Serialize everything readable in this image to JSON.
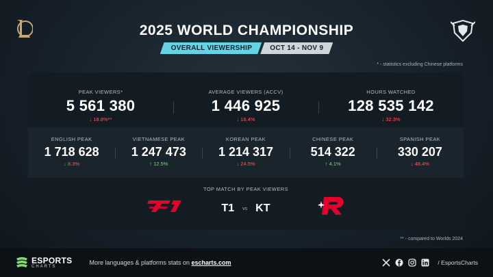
{
  "header": {
    "title": "2025 WORLD CHAMPIONSHIP",
    "tag": "OVERALL VIEWERSHIP",
    "dates": "OCT 14 - NOV 9",
    "note": "* - statistics excluding Chinese platforms"
  },
  "main_stats": [
    {
      "label": "PEAK VIEWERS*",
      "value": "5 561 380",
      "change": "↓ 18.8%**",
      "direction": "down"
    },
    {
      "label": "AVERAGE VIEWERS (ACCV)",
      "value": "1 446 925",
      "change": "↓ 16.4%",
      "direction": "down"
    },
    {
      "label": "HOURS WATCHED",
      "value": "128 535 142",
      "change": "↓ 32.3%",
      "direction": "down"
    }
  ],
  "language_stats": [
    {
      "label": "ENGLISH PEAK",
      "value": "1 718 628",
      "change": "↓ 8.3%",
      "direction": "down"
    },
    {
      "label": "VIETNAMESE PEAK",
      "value": "1 247 473",
      "change": "↑ 12.5%",
      "direction": "up"
    },
    {
      "label": "KOREAN PEAK",
      "value": "1 214 317",
      "change": "↓ 24.5%",
      "direction": "down"
    },
    {
      "label": "CHINESE PEAK",
      "value": "514 322",
      "change": "↑ 4.1%",
      "direction": "up"
    },
    {
      "label": "SPANISH PEAK",
      "value": "330 207",
      "change": "↓ 48.4%",
      "direction": "down"
    }
  ],
  "top_match": {
    "label": "TOP MATCH BY PEAK VIEWERS",
    "team1": "T1",
    "vs": "vs",
    "team2": "KT"
  },
  "note_bottom": "** - compared to Worlds 2024",
  "footer": {
    "brand": "ESPORTS",
    "brand_sub": "CHARTS",
    "more_text": "More languages & platforms stats on ",
    "more_link": "escharts.com",
    "handle": "/ EsportsCharts"
  },
  "colors": {
    "accent": "#63d3e6",
    "down": "#ff5a5a",
    "up": "#6ee07a",
    "t1_red": "#e2012d"
  }
}
